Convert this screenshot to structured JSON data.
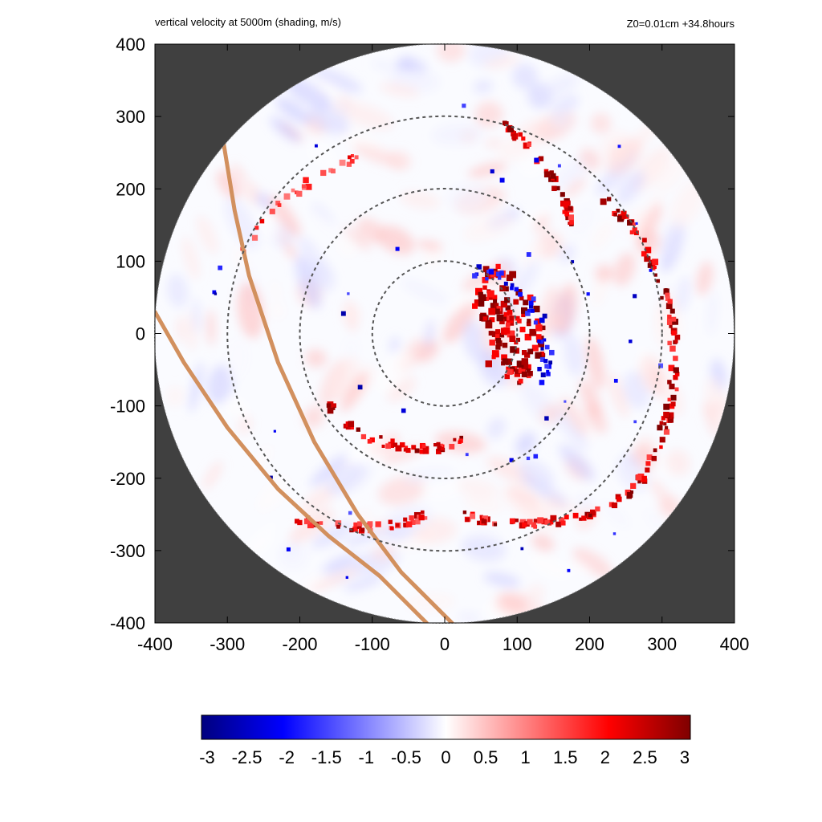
{
  "header": {
    "title": "vertical velocity at 5000m (shading, m/s)",
    "subtitle": "Z0=0.01cm  +34.8hours"
  },
  "chart_data": {
    "type": "heatmap",
    "title": "vertical velocity at 5000m (shading, m/s)",
    "subtitle": "Z0=0.01cm  +34.8hours",
    "xlim": [
      -400,
      400
    ],
    "ylim": [
      -400,
      400
    ],
    "x_ticks": [
      -400,
      -300,
      -200,
      -100,
      0,
      100,
      200,
      300,
      400
    ],
    "y_ticks": [
      -400,
      -300,
      -200,
      -100,
      0,
      100,
      200,
      300,
      400
    ],
    "domain_radius": 400,
    "range_rings": [
      100,
      200,
      300
    ],
    "colorbar": {
      "min": -3,
      "max": 3,
      "ticks": [
        "-3",
        "-2.5",
        "-2",
        "-1.5",
        "-1",
        "-0.5",
        "0",
        "0.5",
        "1",
        "1.5",
        "2",
        "2.5",
        "3"
      ],
      "colors": [
        "#00007f",
        "#0000ff",
        "#ffffff",
        "#ff0000",
        "#7f0000"
      ]
    },
    "background_color": "#404040",
    "track_color": "#d2905e",
    "tracks": [
      {
        "points": [
          [
            -305,
            262
          ],
          [
            -290,
            170
          ],
          [
            -270,
            80
          ],
          [
            -230,
            -40
          ],
          [
            -180,
            -150
          ],
          [
            -120,
            -250
          ],
          [
            -60,
            -330
          ],
          [
            10,
            -400
          ]
        ]
      },
      {
        "points": [
          [
            -400,
            30
          ],
          [
            -360,
            -40
          ],
          [
            -300,
            -130
          ],
          [
            -230,
            -215
          ],
          [
            -160,
            -280
          ],
          [
            -90,
            -335
          ],
          [
            -25,
            -400
          ]
        ]
      }
    ]
  }
}
